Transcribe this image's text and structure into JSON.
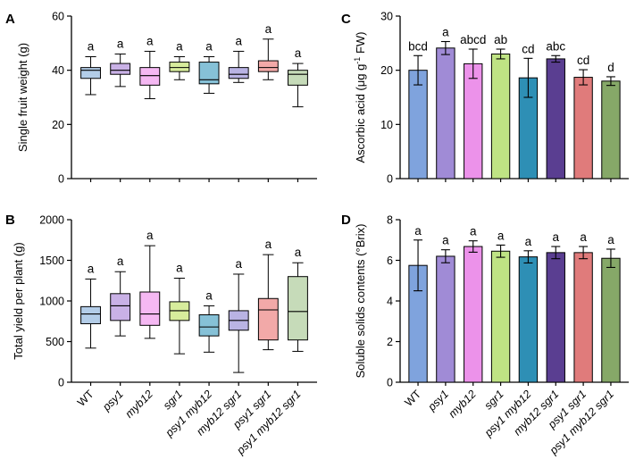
{
  "colors": [
    "#b3cde8",
    "#c9b1e6",
    "#f5b8f3",
    "#d7ec9c",
    "#86c1d7",
    "#b9b3e3",
    "#f2a9a8",
    "#c6dbb9"
  ],
  "bar_colors": [
    "#7fa3dd",
    "#a08bd6",
    "#ec92ea",
    "#bfe384",
    "#2e8fb5",
    "#5a3e91",
    "#e07b7b",
    "#86a868"
  ],
  "chart_data": [
    {
      "panel": "A",
      "type": "box",
      "ylabel": "Single fruit weight (g)",
      "ylim": [
        0,
        60
      ],
      "yticks": [
        0,
        20,
        40,
        60
      ],
      "categories": [
        "WT",
        "psy1",
        "myb12",
        "sgr1",
        "psy1 myb12",
        "myb12 sgr1",
        "psy1 sgr1",
        "psy1 myb12 sgr1"
      ],
      "series": [
        {
          "name": "WT",
          "min": 31,
          "q1": 37,
          "median": 40,
          "q3": 41,
          "max": 45
        },
        {
          "name": "psy1",
          "min": 34,
          "q1": 38.5,
          "median": 40,
          "q3": 42.5,
          "max": 46
        },
        {
          "name": "myb12",
          "min": 29.5,
          "q1": 34.5,
          "median": 38,
          "q3": 41,
          "max": 47
        },
        {
          "name": "sgr1",
          "min": 36.5,
          "q1": 39.5,
          "median": 41,
          "q3": 43,
          "max": 45
        },
        {
          "name": "psy1 myb12",
          "min": 31.5,
          "q1": 35,
          "median": 36.5,
          "q3": 43,
          "max": 45
        },
        {
          "name": "myb12 sgr1",
          "min": 35.5,
          "q1": 37,
          "median": 38.5,
          "q3": 41,
          "max": 47
        },
        {
          "name": "psy1 sgr1",
          "min": 36.5,
          "q1": 39.5,
          "median": 41,
          "q3": 43.5,
          "max": 51.5
        },
        {
          "name": "psy1 myb12 sgr1",
          "min": 26.5,
          "q1": 34.5,
          "median": 38.5,
          "q3": 40,
          "max": 42.5
        }
      ],
      "letters": [
        "a",
        "a",
        "a",
        "a",
        "a",
        "a",
        "a",
        "a"
      ]
    },
    {
      "panel": "B",
      "type": "box",
      "ylabel": "Total yield per plant (g)",
      "ylim": [
        0,
        2000
      ],
      "yticks": [
        0,
        500,
        1000,
        1500,
        2000
      ],
      "categories": [
        "WT",
        "psy1",
        "myb12",
        "sgr1",
        "psy1 myb12",
        "myb12 sgr1",
        "psy1 sgr1",
        "psy1 myb12 sgr1"
      ],
      "series": [
        {
          "name": "WT",
          "min": 420,
          "q1": 720,
          "median": 840,
          "q3": 930,
          "max": 1270
        },
        {
          "name": "psy1",
          "min": 570,
          "q1": 760,
          "median": 940,
          "q3": 1090,
          "max": 1360
        },
        {
          "name": "myb12",
          "min": 540,
          "q1": 700,
          "median": 840,
          "q3": 1110,
          "max": 1680
        },
        {
          "name": "sgr1",
          "min": 350,
          "q1": 760,
          "median": 880,
          "q3": 990,
          "max": 1280
        },
        {
          "name": "psy1 myb12",
          "min": 370,
          "q1": 570,
          "median": 680,
          "q3": 830,
          "max": 940
        },
        {
          "name": "myb12 sgr1",
          "min": 120,
          "q1": 640,
          "median": 760,
          "q3": 880,
          "max": 1330
        },
        {
          "name": "psy1 sgr1",
          "min": 400,
          "q1": 520,
          "median": 890,
          "q3": 1030,
          "max": 1570
        },
        {
          "name": "psy1 myb12 sgr1",
          "min": 380,
          "q1": 520,
          "median": 870,
          "q3": 1300,
          "max": 1470
        }
      ],
      "letters": [
        "a",
        "a",
        "a",
        "a",
        "a",
        "a",
        "a",
        "a"
      ]
    },
    {
      "panel": "C",
      "type": "bar",
      "ylabel": "Ascorbic acid (μg g",
      "ylabel_sup": "-1",
      "ylabel_tail": " FW)",
      "ylim": [
        0,
        30
      ],
      "yticks": [
        0,
        10,
        20,
        30
      ],
      "categories": [
        "WT",
        "psy1",
        "myb12",
        "sgr1",
        "psy1 myb12",
        "myb12 sgr1",
        "psy1 sgr1",
        "psy1 myb12 sgr1"
      ],
      "values": [
        20.0,
        24.1,
        21.2,
        23.0,
        18.6,
        22.1,
        18.7,
        18.0
      ],
      "errors": [
        2.7,
        1.2,
        2.7,
        0.9,
        3.6,
        0.6,
        1.4,
        0.8
      ],
      "letters": [
        "bcd",
        "a",
        "abcd",
        "ab",
        "cd",
        "abc",
        "cd",
        "d"
      ]
    },
    {
      "panel": "D",
      "type": "bar",
      "ylabel": "Soluble solids contents (°Brix)",
      "ylim": [
        0,
        8
      ],
      "yticks": [
        0,
        2,
        4,
        6,
        8
      ],
      "categories": [
        "WT",
        "psy1",
        "myb12",
        "sgr1",
        "psy1 myb12",
        "myb12 sgr1",
        "psy1 sgr1",
        "psy1 myb12 sgr1"
      ],
      "values": [
        5.75,
        6.2,
        6.68,
        6.45,
        6.17,
        6.38,
        6.38,
        6.1
      ],
      "errors": [
        1.25,
        0.32,
        0.28,
        0.3,
        0.3,
        0.3,
        0.3,
        0.45
      ],
      "letters": [
        "a",
        "a",
        "a",
        "a",
        "a",
        "a",
        "a",
        "a"
      ]
    }
  ]
}
